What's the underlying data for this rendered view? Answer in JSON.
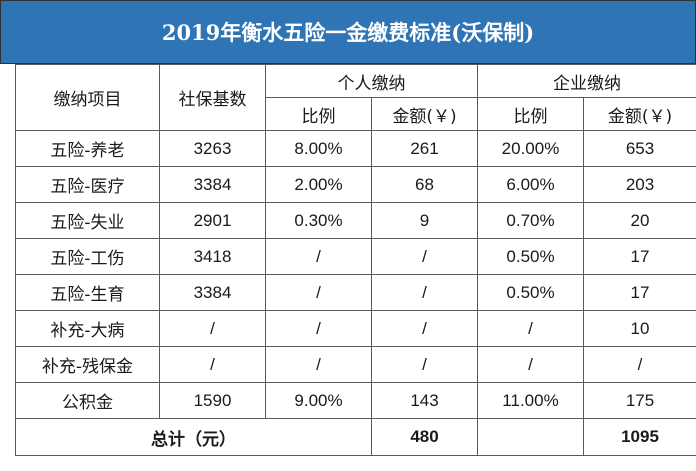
{
  "title": "2019年衡水五险一金缴费标准(沃保制)",
  "header": {
    "item": "缴纳项目",
    "base": "社保基数",
    "personal": "个人缴纳",
    "company": "企业缴纳",
    "ratio": "比例",
    "amount": "金额(￥)"
  },
  "rows": [
    {
      "item": "五险-养老",
      "base": "3263",
      "p_ratio": "8.00%",
      "p_amount": "261",
      "c_ratio": "20.00%",
      "c_amount": "653"
    },
    {
      "item": "五险-医疗",
      "base": "3384",
      "p_ratio": "2.00%",
      "p_amount": "68",
      "c_ratio": "6.00%",
      "c_amount": "203"
    },
    {
      "item": "五险-失业",
      "base": "2901",
      "p_ratio": "0.30%",
      "p_amount": "9",
      "c_ratio": "0.70%",
      "c_amount": "20"
    },
    {
      "item": "五险-工伤",
      "base": "3418",
      "p_ratio": "/",
      "p_amount": "/",
      "c_ratio": "0.50%",
      "c_amount": "17"
    },
    {
      "item": "五险-生育",
      "base": "3384",
      "p_ratio": "/",
      "p_amount": "/",
      "c_ratio": "0.50%",
      "c_amount": "17"
    },
    {
      "item": "补充-大病",
      "base": "/",
      "p_ratio": "/",
      "p_amount": "/",
      "c_ratio": "/",
      "c_amount": "10"
    },
    {
      "item": "补充-残保金",
      "base": "/",
      "p_ratio": "/",
      "p_amount": "/",
      "c_ratio": "/",
      "c_amount": "/"
    },
    {
      "item": "公积金",
      "base": "1590",
      "p_ratio": "9.00%",
      "p_amount": "143",
      "c_ratio": "11.00%",
      "c_amount": "175"
    }
  ],
  "total": {
    "label": "总计（元）",
    "personal_amount": "480",
    "company_amount": "1095"
  }
}
